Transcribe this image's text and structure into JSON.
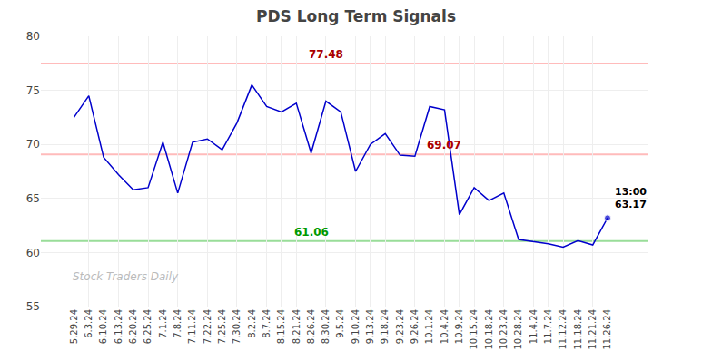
{
  "chart_data": {
    "type": "line",
    "title": "PDS Long Term Signals",
    "categories": [
      "5.29.24",
      "6.3.24",
      "6.10.24",
      "6.13.24",
      "6.20.24",
      "6.25.24",
      "7.1.24",
      "7.8.24",
      "7.11.24",
      "7.22.24",
      "7.25.24",
      "7.30.24",
      "8.2.24",
      "8.7.24",
      "8.15.24",
      "8.21.24",
      "8.26.24",
      "8.30.24",
      "9.5.24",
      "9.10.24",
      "9.13.24",
      "9.18.24",
      "9.23.24",
      "9.26.24",
      "10.1.24",
      "10.4.24",
      "10.9.24",
      "10.15.24",
      "10.18.24",
      "10.23.24",
      "10.28.24",
      "11.4.24",
      "11.7.24",
      "11.12.24",
      "11.18.24",
      "11.21.24",
      "11.26.24"
    ],
    "values": [
      72.5,
      74.5,
      68.8,
      67.2,
      65.8,
      66.0,
      70.2,
      65.5,
      70.2,
      70.5,
      69.5,
      72.0,
      75.5,
      73.5,
      73.0,
      73.8,
      69.2,
      74.0,
      73.0,
      67.5,
      70.0,
      71.0,
      69.0,
      68.9,
      73.5,
      73.2,
      63.5,
      66.0,
      64.8,
      65.5,
      61.2,
      61.0,
      60.8,
      60.5,
      61.1,
      60.7,
      63.2
    ],
    "color": "#0000cc",
    "ylim": [
      55,
      80
    ],
    "yticks": [
      55,
      60,
      65,
      70,
      75,
      80
    ],
    "grid": true,
    "hlines": [
      {
        "value": 77.48,
        "label": "77.48",
        "color": "#ffbbbb",
        "label_color": "#aa0000",
        "label_at": "8.30.24"
      },
      {
        "value": 69.07,
        "label": "69.07",
        "color": "#ffbbbb",
        "label_color": "#aa0000",
        "label_at": "10.4.24"
      },
      {
        "value": 61.06,
        "label": "61.06",
        "color": "#99dd99",
        "label_color": "#009900",
        "label_at": "8.26.24"
      }
    ],
    "annotations": [
      {
        "text": "13:00\n63.17",
        "x": "11.26.24",
        "y": 63.2
      },
      {
        "text": "Stock Traders Daily"
      }
    ]
  }
}
